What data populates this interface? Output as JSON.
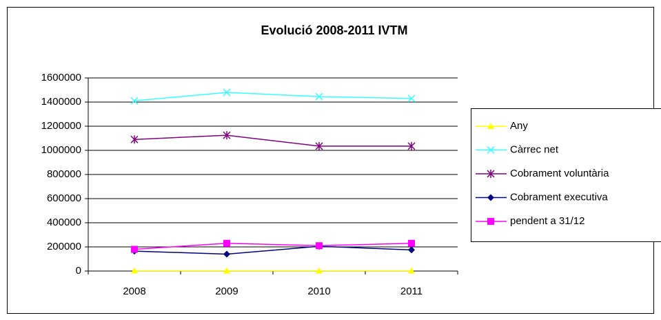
{
  "chart_data": {
    "type": "line",
    "title": "Evolució 2008-2011 IVTM",
    "categories": [
      "2008",
      "2009",
      "2010",
      "2011"
    ],
    "series": [
      {
        "name": "Any",
        "color": "#ffff00",
        "marker": "triangle",
        "values": [
          2008,
          2009,
          2010,
          2011
        ]
      },
      {
        "name": "Càrrec net",
        "color": "#33ffff",
        "marker": "x",
        "values": [
          1410000,
          1480000,
          1445000,
          1430000
        ]
      },
      {
        "name": "Cobrament voluntària",
        "color": "#800080",
        "marker": "star",
        "values": [
          1090000,
          1125000,
          1035000,
          1035000
        ]
      },
      {
        "name": "Cobrament executiva",
        "color": "#000080",
        "marker": "diamond",
        "values": [
          165000,
          140000,
          205000,
          175000
        ]
      },
      {
        "name": "pendent a 31/12",
        "color": "#ff00ff",
        "marker": "square",
        "values": [
          180000,
          230000,
          210000,
          230000
        ]
      }
    ],
    "ylim": [
      0,
      1600000
    ],
    "yticks": [
      0,
      200000,
      400000,
      600000,
      800000,
      1000000,
      1200000,
      1400000,
      1600000
    ],
    "grid": true
  }
}
